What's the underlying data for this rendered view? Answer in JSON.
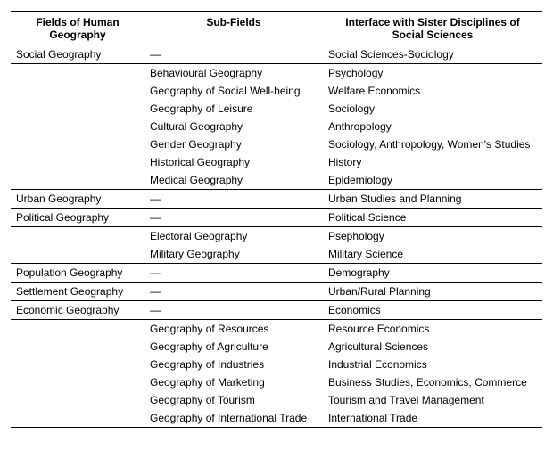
{
  "headers": {
    "c1": "Fields of Human Geography",
    "c2": "Sub-Fields",
    "c3": "Interface with Sister Disciplines of Social Sciences"
  },
  "rows": [
    {
      "c1": "Social Geography",
      "c2": "—",
      "c3": "Social Sciences-Sociology",
      "hr": true
    },
    {
      "c1": "",
      "c2": "Behavioural Geography",
      "c3": "Psychology"
    },
    {
      "c1": "",
      "c2": "Geography of Social Well-being",
      "c3": "Welfare Economics"
    },
    {
      "c1": "",
      "c2": "Geography of Leisure",
      "c3": "Sociology"
    },
    {
      "c1": "",
      "c2": "Cultural Geography",
      "c3": "Anthropology"
    },
    {
      "c1": "",
      "c2": "Gender Geography",
      "c3": "Sociology, Anthropology, Women's Studies"
    },
    {
      "c1": "",
      "c2": "Historical Geography",
      "c3": "History"
    },
    {
      "c1": "",
      "c2": "Medical Geography",
      "c3": "Epidemiology",
      "hr": true
    },
    {
      "c1": "Urban Geography",
      "c2": "—",
      "c3": "Urban Studies and Planning",
      "hr": true
    },
    {
      "c1": "Political Geography",
      "c2": "—",
      "c3": "Political Science",
      "hr": true
    },
    {
      "c1": "",
      "c2": "Electoral Geography",
      "c3": "Psephology"
    },
    {
      "c1": "",
      "c2": "Military Geography",
      "c3": "Military Science",
      "hr": true
    },
    {
      "c1": "Population Geography",
      "c2": "—",
      "c3": "Demography",
      "hr": true
    },
    {
      "c1": "Settlement Geography",
      "c2": "—",
      "c3": "Urban/Rural Planning",
      "hr": true
    },
    {
      "c1": "Economic Geography",
      "c2": "—",
      "c3": "Economics",
      "hr": true
    },
    {
      "c1": "",
      "c2": "Geography of Resources",
      "c3": "Resource Economics"
    },
    {
      "c1": "",
      "c2": "Geography of Agriculture",
      "c3": "Agricultural Sciences"
    },
    {
      "c1": "",
      "c2": "Geography of Industries",
      "c3": "Industrial Economics"
    },
    {
      "c1": "",
      "c2": "Geography of Marketing",
      "c3": "Business Studies, Economics, Commerce"
    },
    {
      "c1": "",
      "c2": "Geography of Tourism",
      "c3": "Tourism and Travel Management"
    },
    {
      "c1": "",
      "c2": "Geography of International Trade",
      "c3": "International Trade",
      "hr": true
    }
  ]
}
